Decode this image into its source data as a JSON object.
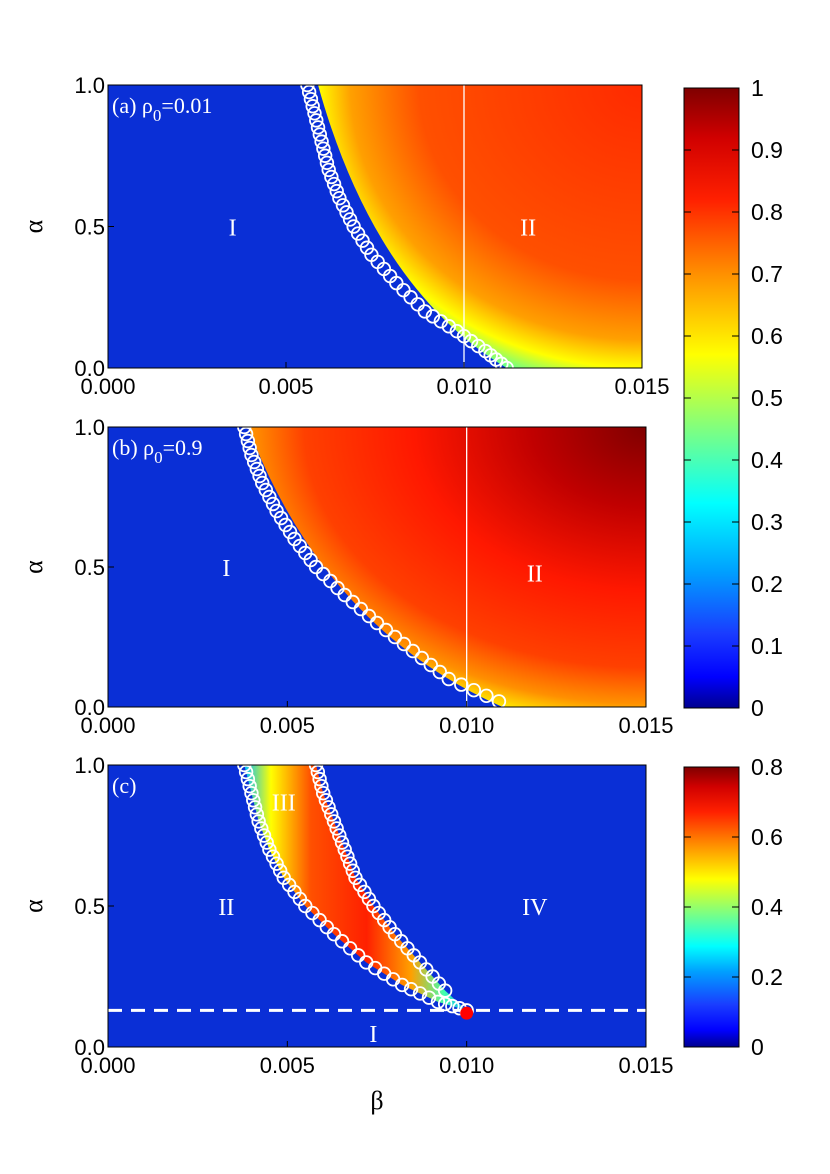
{
  "chart_data": [
    {
      "panel": "a",
      "type": "heatmap",
      "title": "(a) ρ0=0.01",
      "label_prefix": "(a) ρ",
      "label_subscript": "0",
      "label_suffix": "=0.01",
      "xlabel": "",
      "ylabel": "α",
      "xlim": [
        0.0,
        0.015
      ],
      "ylim": [
        0.0,
        1.0
      ],
      "xticks": [
        "0.000",
        "0.005",
        "0.010",
        "0.015"
      ],
      "yticks": [
        "0.0",
        "0.5",
        "1.0"
      ],
      "colorbar_range": [
        0,
        1
      ],
      "colorscale": "jet",
      "regions": [
        {
          "label": "I",
          "x": 0.0035,
          "y": 0.5
        },
        {
          "label": "II",
          "x": 0.0118,
          "y": 0.5
        }
      ],
      "boundary_circles": [
        {
          "x": 0.0056,
          "y": 1.0
        },
        {
          "x": 0.0058,
          "y": 0.9
        },
        {
          "x": 0.006,
          "y": 0.8
        },
        {
          "x": 0.0062,
          "y": 0.7
        },
        {
          "x": 0.0065,
          "y": 0.6
        },
        {
          "x": 0.0069,
          "y": 0.5
        },
        {
          "x": 0.0074,
          "y": 0.4
        },
        {
          "x": 0.0081,
          "y": 0.3
        },
        {
          "x": 0.0089,
          "y": 0.2
        },
        {
          "x": 0.0098,
          "y": 0.13
        },
        {
          "x": 0.0106,
          "y": 0.06
        },
        {
          "x": 0.0112,
          "y": 0.0
        }
      ],
      "reference_line_x": 0.01,
      "field_edge": {
        "beta_at_alpha_1": 0.0059,
        "beta_at_alpha_0": 0.0112
      }
    },
    {
      "panel": "b",
      "type": "heatmap",
      "title": "(b) ρ0=0.9",
      "label_prefix": "(b) ρ",
      "label_subscript": "0",
      "label_suffix": "=0.9",
      "xlabel": "",
      "ylabel": "α",
      "xlim": [
        0.0,
        0.015
      ],
      "ylim": [
        0.0,
        1.0
      ],
      "xticks": [
        "0.000",
        "0.005",
        "0.010",
        "0.015"
      ],
      "yticks": [
        "0.0",
        "0.5",
        "1.0"
      ],
      "colorbar_range": [
        0,
        1
      ],
      "colorscale": "jet",
      "regions": [
        {
          "label": "I",
          "x": 0.0033,
          "y": 0.5
        },
        {
          "label": "II",
          "x": 0.0119,
          "y": 0.48
        }
      ],
      "boundary_circles": [
        {
          "x": 0.0038,
          "y": 1.0
        },
        {
          "x": 0.004,
          "y": 0.9
        },
        {
          "x": 0.0043,
          "y": 0.8
        },
        {
          "x": 0.0047,
          "y": 0.7
        },
        {
          "x": 0.0052,
          "y": 0.6
        },
        {
          "x": 0.0058,
          "y": 0.5
        },
        {
          "x": 0.0066,
          "y": 0.4
        },
        {
          "x": 0.0075,
          "y": 0.3
        },
        {
          "x": 0.0085,
          "y": 0.2
        },
        {
          "x": 0.0095,
          "y": 0.1
        },
        {
          "x": 0.0109,
          "y": 0.02
        }
      ],
      "reference_line_x": 0.01,
      "field_edge": {
        "beta_at_alpha_1": 0.0039,
        "beta_at_alpha_0": 0.011
      }
    },
    {
      "panel": "c",
      "type": "heatmap",
      "title": "(c)",
      "label_prefix": "(c)",
      "label_subscript": "",
      "label_suffix": "",
      "xlabel": "β",
      "ylabel": "α",
      "xlim": [
        0.0,
        0.015
      ],
      "ylim": [
        0.0,
        1.0
      ],
      "xticks": [
        "0.000",
        "0.005",
        "0.010",
        "0.015"
      ],
      "yticks": [
        "0.0",
        "0.5",
        "1.0"
      ],
      "colorbar_range": [
        0,
        0.8
      ],
      "colorscale": "jet",
      "regions": [
        {
          "label": "II",
          "x": 0.0033,
          "y": 0.5
        },
        {
          "label": "III",
          "x": 0.0049,
          "y": 0.87
        },
        {
          "label": "IV",
          "x": 0.0119,
          "y": 0.5
        },
        {
          "label": "I",
          "x": 0.0074,
          "y": 0.05
        }
      ],
      "left_boundary_circles": [
        {
          "x": 0.0038,
          "y": 1.0
        },
        {
          "x": 0.004,
          "y": 0.9
        },
        {
          "x": 0.0042,
          "y": 0.8
        },
        {
          "x": 0.0045,
          "y": 0.7
        },
        {
          "x": 0.0049,
          "y": 0.6
        },
        {
          "x": 0.0055,
          "y": 0.5
        },
        {
          "x": 0.0063,
          "y": 0.4
        },
        {
          "x": 0.0072,
          "y": 0.3
        },
        {
          "x": 0.0082,
          "y": 0.22
        },
        {
          "x": 0.0092,
          "y": 0.16
        },
        {
          "x": 0.01,
          "y": 0.13
        }
      ],
      "right_boundary_circles": [
        {
          "x": 0.0058,
          "y": 1.0
        },
        {
          "x": 0.006,
          "y": 0.9
        },
        {
          "x": 0.0063,
          "y": 0.8
        },
        {
          "x": 0.0066,
          "y": 0.7
        },
        {
          "x": 0.0069,
          "y": 0.6
        },
        {
          "x": 0.0074,
          "y": 0.5
        },
        {
          "x": 0.008,
          "y": 0.4
        },
        {
          "x": 0.0087,
          "y": 0.3
        },
        {
          "x": 0.0094,
          "y": 0.2
        }
      ],
      "dashed_line_y": 0.13,
      "critical_point": {
        "x": 0.01,
        "y": 0.12
      }
    }
  ],
  "colorbars": [
    {
      "ticks": [
        "0",
        "0.1",
        "0.2",
        "0.3",
        "0.4",
        "0.5",
        "0.6",
        "0.7",
        "0.8",
        "0.9",
        "1"
      ],
      "min": 0,
      "max": 1
    },
    {
      "ticks": [
        "0",
        "0.2",
        "0.4",
        "0.6",
        "0.8"
      ],
      "min": 0,
      "max": 0.8
    }
  ],
  "colors": {
    "field_low": "#0a2fd6",
    "circle_stroke": "#ffffff",
    "critical_point": "#ff0000",
    "axis": "#000000"
  }
}
